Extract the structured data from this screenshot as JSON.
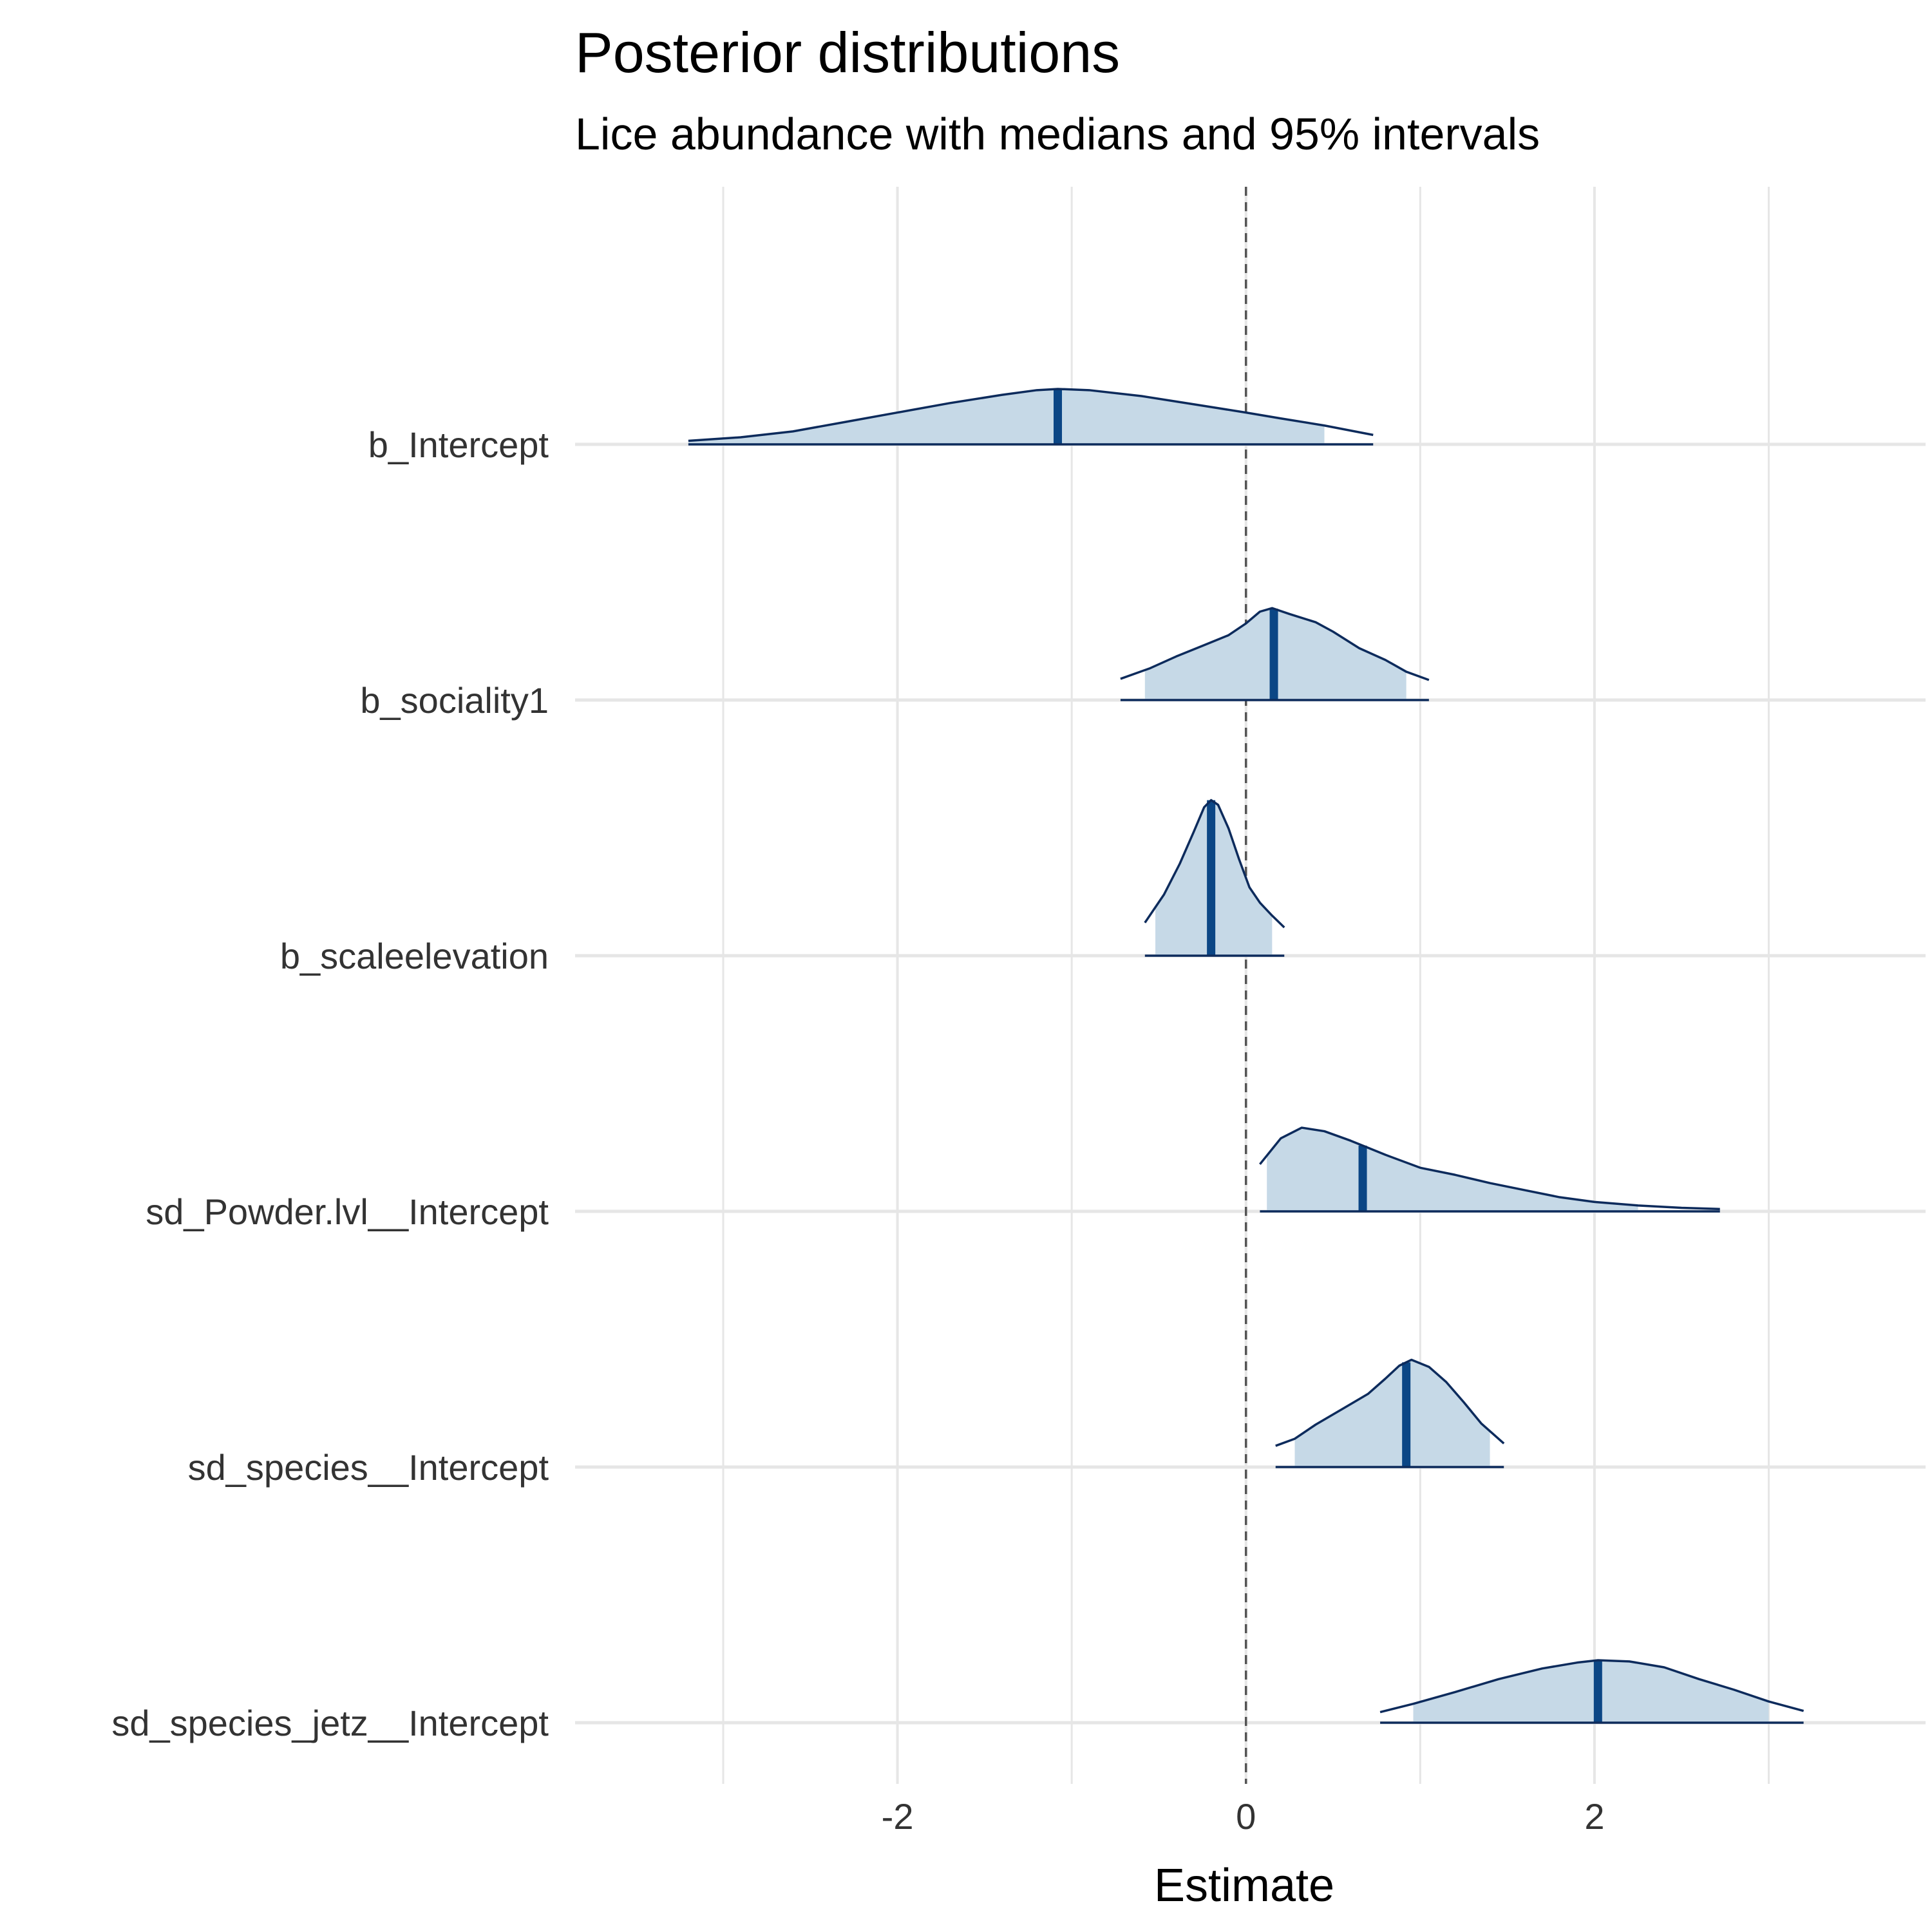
{
  "chart_data": {
    "type": "area",
    "title": "Posterior distributions",
    "subtitle": "Lice abundance with medians and 95% intervals",
    "xlabel": "Estimate",
    "ylabel": "",
    "xlim": [
      -3.85,
      3.9
    ],
    "x_ticks": [
      -2,
      0,
      2
    ],
    "x_tick_labels": [
      "-2",
      "0",
      "2"
    ],
    "reference_line_x": 0,
    "grid": true,
    "legend": "none",
    "colors": {
      "fill": "#c6d9e7",
      "outline": "#0d2b5c",
      "median": "#0b4685",
      "grid": "#e6e6e6",
      "reference": "#555555"
    },
    "series": [
      {
        "name": "b_Intercept",
        "support": [
          -3.2,
          0.73
        ],
        "median": -1.08,
        "interval_95": [
          -3.2,
          0.45
        ],
        "density": [
          [
            -3.2,
            0.03
          ],
          [
            -2.9,
            0.06
          ],
          [
            -2.6,
            0.11
          ],
          [
            -2.3,
            0.19
          ],
          [
            -2.0,
            0.27
          ],
          [
            -1.7,
            0.35
          ],
          [
            -1.4,
            0.42
          ],
          [
            -1.2,
            0.46
          ],
          [
            -1.08,
            0.47
          ],
          [
            -0.9,
            0.46
          ],
          [
            -0.6,
            0.41
          ],
          [
            -0.3,
            0.34
          ],
          [
            0.0,
            0.27
          ],
          [
            0.2,
            0.22
          ],
          [
            0.45,
            0.16
          ],
          [
            0.73,
            0.08
          ]
        ]
      },
      {
        "name": "b_sociality1",
        "support": [
          -0.72,
          1.05
        ],
        "median": 0.16,
        "interval_95": [
          -0.58,
          0.92
        ],
        "density": [
          [
            -0.72,
            0.18
          ],
          [
            -0.55,
            0.27
          ],
          [
            -0.4,
            0.37
          ],
          [
            -0.25,
            0.46
          ],
          [
            -0.1,
            0.55
          ],
          [
            0.0,
            0.65
          ],
          [
            0.08,
            0.75
          ],
          [
            0.15,
            0.78
          ],
          [
            0.25,
            0.73
          ],
          [
            0.4,
            0.66
          ],
          [
            0.5,
            0.58
          ],
          [
            0.65,
            0.44
          ],
          [
            0.8,
            0.34
          ],
          [
            0.92,
            0.24
          ],
          [
            1.05,
            0.17
          ]
        ]
      },
      {
        "name": "b_scaleelevation",
        "support": [
          -0.58,
          0.22
        ],
        "median": -0.2,
        "interval_95": [
          -0.52,
          0.15
        ],
        "density": [
          [
            -0.58,
            0.28
          ],
          [
            -0.47,
            0.52
          ],
          [
            -0.38,
            0.78
          ],
          [
            -0.3,
            1.05
          ],
          [
            -0.24,
            1.26
          ],
          [
            -0.2,
            1.32
          ],
          [
            -0.16,
            1.28
          ],
          [
            -0.1,
            1.08
          ],
          [
            -0.04,
            0.82
          ],
          [
            0.02,
            0.58
          ],
          [
            0.08,
            0.45
          ],
          [
            0.15,
            0.34
          ],
          [
            0.22,
            0.24
          ]
        ]
      },
      {
        "name": "sd_Powder.lvl__Intercept",
        "support": [
          0.08,
          2.72
        ],
        "median": 0.67,
        "interval_95": [
          0.12,
          2.25
        ],
        "density": [
          [
            0.08,
            0.4
          ],
          [
            0.2,
            0.62
          ],
          [
            0.32,
            0.71
          ],
          [
            0.45,
            0.68
          ],
          [
            0.6,
            0.6
          ],
          [
            0.8,
            0.48
          ],
          [
            1.0,
            0.37
          ],
          [
            1.2,
            0.31
          ],
          [
            1.4,
            0.24
          ],
          [
            1.6,
            0.18
          ],
          [
            1.8,
            0.12
          ],
          [
            2.0,
            0.08
          ],
          [
            2.25,
            0.05
          ],
          [
            2.5,
            0.03
          ],
          [
            2.72,
            0.02
          ]
        ]
      },
      {
        "name": "sd_species__Intercept",
        "support": [
          0.17,
          1.48
        ],
        "median": 0.92,
        "interval_95": [
          0.28,
          1.4
        ],
        "density": [
          [
            0.17,
            0.18
          ],
          [
            0.28,
            0.24
          ],
          [
            0.4,
            0.36
          ],
          [
            0.55,
            0.49
          ],
          [
            0.7,
            0.62
          ],
          [
            0.8,
            0.75
          ],
          [
            0.88,
            0.86
          ],
          [
            0.95,
            0.91
          ],
          [
            1.05,
            0.85
          ],
          [
            1.15,
            0.72
          ],
          [
            1.25,
            0.55
          ],
          [
            1.35,
            0.37
          ],
          [
            1.48,
            0.2
          ]
        ]
      },
      {
        "name": "sd_species_jetz__Intercept",
        "support": [
          0.77,
          3.2
        ],
        "median": 2.02,
        "interval_95": [
          0.96,
          3.0
        ],
        "density": [
          [
            0.77,
            0.09
          ],
          [
            0.96,
            0.16
          ],
          [
            1.2,
            0.26
          ],
          [
            1.45,
            0.37
          ],
          [
            1.7,
            0.46
          ],
          [
            1.9,
            0.51
          ],
          [
            2.02,
            0.53
          ],
          [
            2.2,
            0.52
          ],
          [
            2.4,
            0.47
          ],
          [
            2.6,
            0.37
          ],
          [
            2.8,
            0.28
          ],
          [
            3.0,
            0.18
          ],
          [
            3.2,
            0.1
          ]
        ]
      }
    ]
  }
}
